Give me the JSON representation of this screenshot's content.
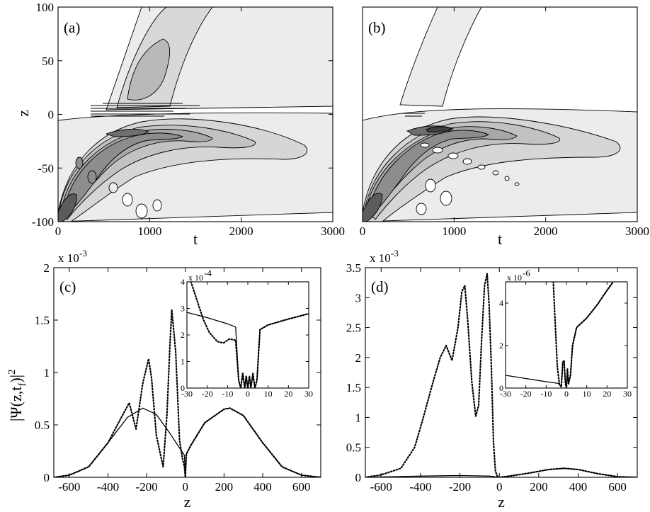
{
  "chart_data": [
    {
      "id": "a",
      "type": "heatmap",
      "panel_label": "(a)",
      "xlabel": "t",
      "ylabel": "z",
      "xlim": [
        0,
        3000
      ],
      "ylim": [
        -100,
        100
      ],
      "x_ticks": [
        "0",
        "1000",
        "2000",
        "3000"
      ],
      "y_ticks": [
        "100",
        "50",
        "0",
        "-50",
        "-100"
      ],
      "contour_features": {
        "upper_plume": {
          "t_start": 500,
          "t_end": 2600,
          "z_range": [
            10,
            100
          ],
          "level": 1
        },
        "upper_core": {
          "t_center": 850,
          "z_center": 55,
          "level": 2
        },
        "lower_lobe": {
          "t_origin": 0,
          "z_origin": -80,
          "t_extent": 3000,
          "z_peak": -20,
          "max_level": 6
        },
        "fringe_lines_near_z0": {
          "t_range": [
            450,
            1550
          ],
          "count": 6
        }
      }
    },
    {
      "id": "b",
      "type": "heatmap",
      "panel_label": "(b)",
      "xlabel": "t",
      "ylabel": "",
      "xlim": [
        0,
        3000
      ],
      "ylim": [
        -100,
        100
      ],
      "x_ticks": [
        "0",
        "1000",
        "2000",
        "3000"
      ],
      "y_ticks": [],
      "contour_features": {
        "upper_plume": {
          "t_start": 400,
          "t_end": 1400,
          "z_range": [
            5,
            100
          ],
          "level": 1
        },
        "lower_lobe": {
          "t_origin": 0,
          "z_origin": -80,
          "t_extent": 3000,
          "z_peak": -15,
          "max_level": 7
        },
        "interference_blobs_along_ridge": true
      }
    },
    {
      "id": "c",
      "type": "line",
      "panel_label": "(c)",
      "xlabel": "z",
      "ylabel": "|Ψ(z,t_f)|²",
      "ylabel_main": "|Ψ(z,t",
      "ylabel_sub": "f",
      "ylabel_tail": ")|",
      "ylabel_sup": "2",
      "xlim": [
        -680,
        700
      ],
      "ylim": [
        0,
        2.0
      ],
      "scale_note": "x 10",
      "scale_exp": "-3",
      "x_ticks": [
        "-600",
        "-400",
        "-200",
        "0",
        "200",
        "400",
        "600"
      ],
      "y_ticks": [
        "0",
        "0.5",
        "1",
        "1.5",
        "2"
      ],
      "series": [
        {
          "style": "solid",
          "x": [
            -680,
            -600,
            -500,
            -400,
            -300,
            -220,
            -150,
            -80,
            -30,
            -5,
            0,
            5,
            30,
            100,
            200,
            230,
            300,
            400,
            500,
            600,
            700
          ],
          "y": [
            0.0,
            0.02,
            0.1,
            0.33,
            0.57,
            0.66,
            0.6,
            0.42,
            0.28,
            0.21,
            0.0,
            0.22,
            0.31,
            0.52,
            0.65,
            0.66,
            0.59,
            0.33,
            0.1,
            0.02,
            0.0
          ]
        },
        {
          "style": "dotted",
          "x": [
            -680,
            -600,
            -500,
            -400,
            -340,
            -290,
            -255,
            -220,
            -190,
            -175,
            -150,
            -115,
            -95,
            -80,
            -70,
            -50,
            -30,
            -15,
            -5,
            0,
            5,
            30,
            100,
            200,
            230,
            300,
            400,
            500,
            600,
            700
          ],
          "y": [
            0.0,
            0.02,
            0.1,
            0.33,
            0.54,
            0.71,
            0.46,
            0.9,
            1.13,
            0.95,
            0.4,
            0.1,
            0.6,
            1.25,
            1.6,
            1.2,
            0.35,
            0.18,
            0.1,
            0.0,
            0.22,
            0.31,
            0.52,
            0.65,
            0.66,
            0.59,
            0.33,
            0.1,
            0.02,
            0.0
          ]
        }
      ],
      "inset": {
        "xlim": [
          -30,
          30
        ],
        "ylim": [
          0,
          4
        ],
        "scale_note": "x 10",
        "scale_exp": "-4",
        "x_ticks": [
          "-30",
          "-20",
          "-10",
          "0",
          "10",
          "20",
          "30"
        ],
        "y_ticks": [
          "0",
          "1",
          "2",
          "3",
          "4"
        ],
        "series": [
          {
            "style": "solid",
            "x": [
              -30,
              -20,
              -10,
              -6,
              -4.5,
              -3.5,
              -2.5,
              -1.5,
              -0.8,
              0,
              0.8,
              1.5,
              2.5,
              3.5,
              4.5,
              6,
              10,
              20,
              30
            ],
            "y": [
              2.85,
              2.65,
              2.42,
              2.3,
              0.3,
              0.0,
              0.55,
              0.0,
              0.45,
              0.0,
              0.45,
              0.0,
              0.55,
              0.0,
              0.3,
              2.2,
              2.38,
              2.6,
              2.8
            ]
          },
          {
            "style": "dotted",
            "x": [
              -28,
              -25,
              -22,
              -19,
              -15,
              -12,
              -9,
              -6,
              -4.5,
              -3.5,
              -2.5,
              -1.5,
              -0.8,
              0,
              0.8,
              1.5,
              2.5,
              3.5,
              4.5,
              6,
              10,
              20,
              30
            ],
            "y": [
              4.0,
              3.3,
              2.6,
              2.1,
              1.75,
              1.7,
              1.85,
              1.8,
              0.3,
              0.0,
              0.55,
              0.0,
              0.45,
              0.0,
              0.45,
              0.0,
              0.55,
              0.0,
              0.3,
              2.2,
              2.38,
              2.6,
              2.8
            ]
          }
        ]
      }
    },
    {
      "id": "d",
      "type": "line",
      "panel_label": "(d)",
      "xlabel": "z",
      "ylabel": "",
      "xlim": [
        -680,
        700
      ],
      "ylim": [
        0,
        3.5
      ],
      "scale_note": "x 10",
      "scale_exp": "-3",
      "x_ticks": [
        "-600",
        "-400",
        "-200",
        "0",
        "200",
        "400",
        "600"
      ],
      "y_ticks": [
        "0",
        "0.5",
        "1",
        "1.5",
        "2",
        "2.5",
        "3",
        "3.5"
      ],
      "series": [
        {
          "style": "solid",
          "x": [
            -680,
            -400,
            -200,
            -50,
            0,
            50,
            150,
            250,
            330,
            400,
            500,
            600,
            700
          ],
          "y": [
            0.0,
            0.02,
            0.03,
            0.02,
            0.0,
            0.02,
            0.07,
            0.13,
            0.15,
            0.13,
            0.06,
            0.01,
            0.0
          ]
        },
        {
          "style": "dotted",
          "x": [
            -680,
            -600,
            -500,
            -430,
            -390,
            -340,
            -300,
            -270,
            -240,
            -210,
            -190,
            -175,
            -160,
            -140,
            -120,
            -105,
            -90,
            -75,
            -62,
            -52,
            -40,
            -30,
            -20,
            -10,
            0,
            50,
            150,
            250,
            330,
            400,
            500,
            600,
            700
          ],
          "y": [
            0.0,
            0.04,
            0.15,
            0.5,
            0.95,
            1.55,
            2.0,
            2.2,
            1.95,
            2.5,
            3.1,
            3.2,
            2.6,
            1.6,
            1.02,
            1.2,
            2.3,
            3.2,
            3.4,
            2.9,
            1.8,
            0.6,
            0.1,
            0.02,
            0.0,
            0.02,
            0.07,
            0.13,
            0.15,
            0.13,
            0.06,
            0.01,
            0.0
          ]
        }
      ],
      "inset": {
        "xlim": [
          -30,
          30
        ],
        "ylim": [
          0,
          5
        ],
        "scale_note": "x 10",
        "scale_exp": "-6",
        "x_ticks": [
          "-30",
          "-20",
          "-10",
          "0",
          "10",
          "20",
          "30"
        ],
        "y_ticks": [
          "0",
          "2",
          "4"
        ],
        "series": [
          {
            "style": "solid",
            "x": [
              -30,
              -20,
              -10,
              -4,
              -2.5,
              -1.8,
              -1.2,
              -0.5,
              0,
              0.5,
              1,
              2,
              3,
              5,
              10,
              15,
              20,
              23
            ],
            "y": [
              0.6,
              0.45,
              0.3,
              0.22,
              0.05,
              1.2,
              1.3,
              0.2,
              0.0,
              0.9,
              0.2,
              0.6,
              2.0,
              2.85,
              3.3,
              3.9,
              4.6,
              5.0
            ]
          },
          {
            "style": "dotted",
            "x": [
              -6.5,
              -5.5,
              -4.5,
              -3.5,
              -2.5,
              -1.8,
              -1.2,
              -0.5,
              0,
              0.5,
              1,
              2,
              3,
              5,
              10,
              15,
              20,
              23
            ],
            "y": [
              5.0,
              3.0,
              1.0,
              0.2,
              0.05,
              1.2,
              1.3,
              0.2,
              0.0,
              0.9,
              0.2,
              0.6,
              2.0,
              2.85,
              3.3,
              3.9,
              4.6,
              5.0
            ]
          }
        ]
      }
    }
  ]
}
